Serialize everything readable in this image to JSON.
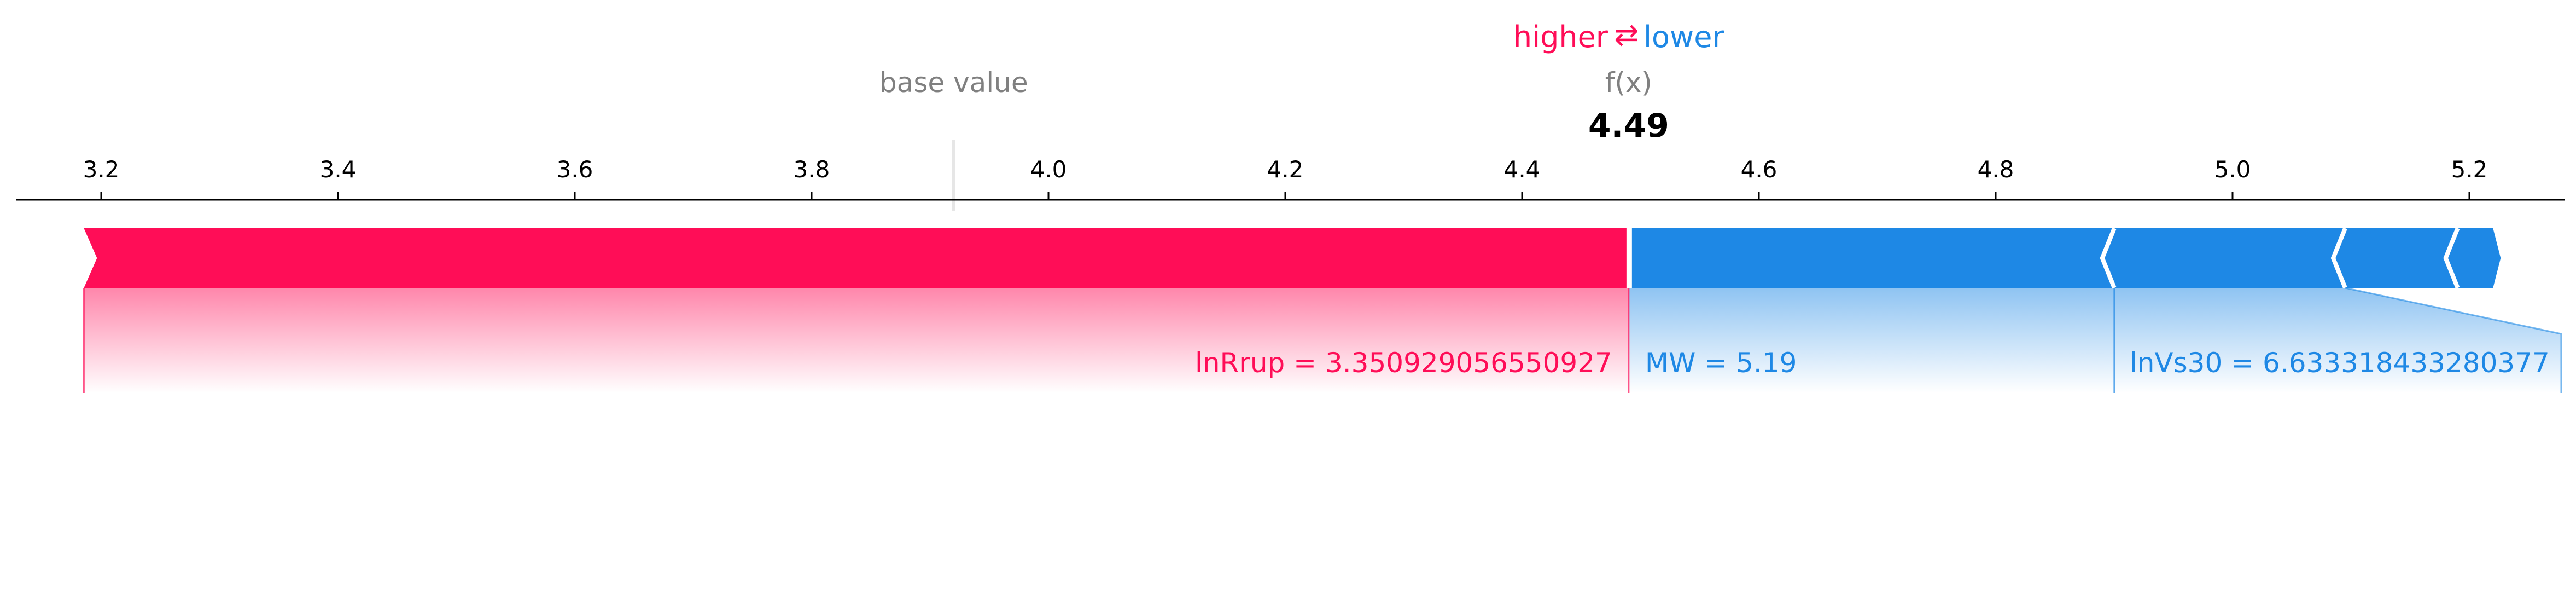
{
  "header": {
    "higher_label": "higher",
    "arrow_glyph": "⇄",
    "lower_label": "lower",
    "base_value_label": "base value",
    "fx_label": "f(x)",
    "fx_value": "4.49"
  },
  "chart_data": {
    "type": "force",
    "xlim": [
      3.13,
      5.28
    ],
    "ticks": [
      {
        "value": 3.2,
        "label": "3.2"
      },
      {
        "value": 3.4,
        "label": "3.4"
      },
      {
        "value": 3.6,
        "label": "3.6"
      },
      {
        "value": 3.8,
        "label": "3.8"
      },
      {
        "value": 4.0,
        "label": "4.0"
      },
      {
        "value": 4.2,
        "label": "4.2"
      },
      {
        "value": 4.4,
        "label": "4.4"
      },
      {
        "value": 4.6,
        "label": "4.6"
      },
      {
        "value": 4.8,
        "label": "4.8"
      },
      {
        "value": 5.0,
        "label": "5.0"
      },
      {
        "value": 5.2,
        "label": "5.2"
      }
    ],
    "base_value": 3.92,
    "output_value": 4.49,
    "positive_features": [
      {
        "start": 3.19,
        "end": 4.49,
        "label": "lnRrup = 3.350929056550927"
      }
    ],
    "negative_features": [
      {
        "start": 4.49,
        "end": 4.89,
        "label": "MW = 5.19"
      },
      {
        "start": 4.89,
        "end": 5.085,
        "label": "lnVs30 = 6.633318433280377"
      },
      {
        "start": 5.085,
        "end": 5.18,
        "label": ""
      },
      {
        "start": 5.18,
        "end": 5.22,
        "label": ""
      }
    ],
    "colors": {
      "positive": "#ff0d57",
      "negative": "#1e88e5",
      "base_line": "#e6e6e6",
      "muted_text": "#808080",
      "axis": "#000000"
    }
  }
}
